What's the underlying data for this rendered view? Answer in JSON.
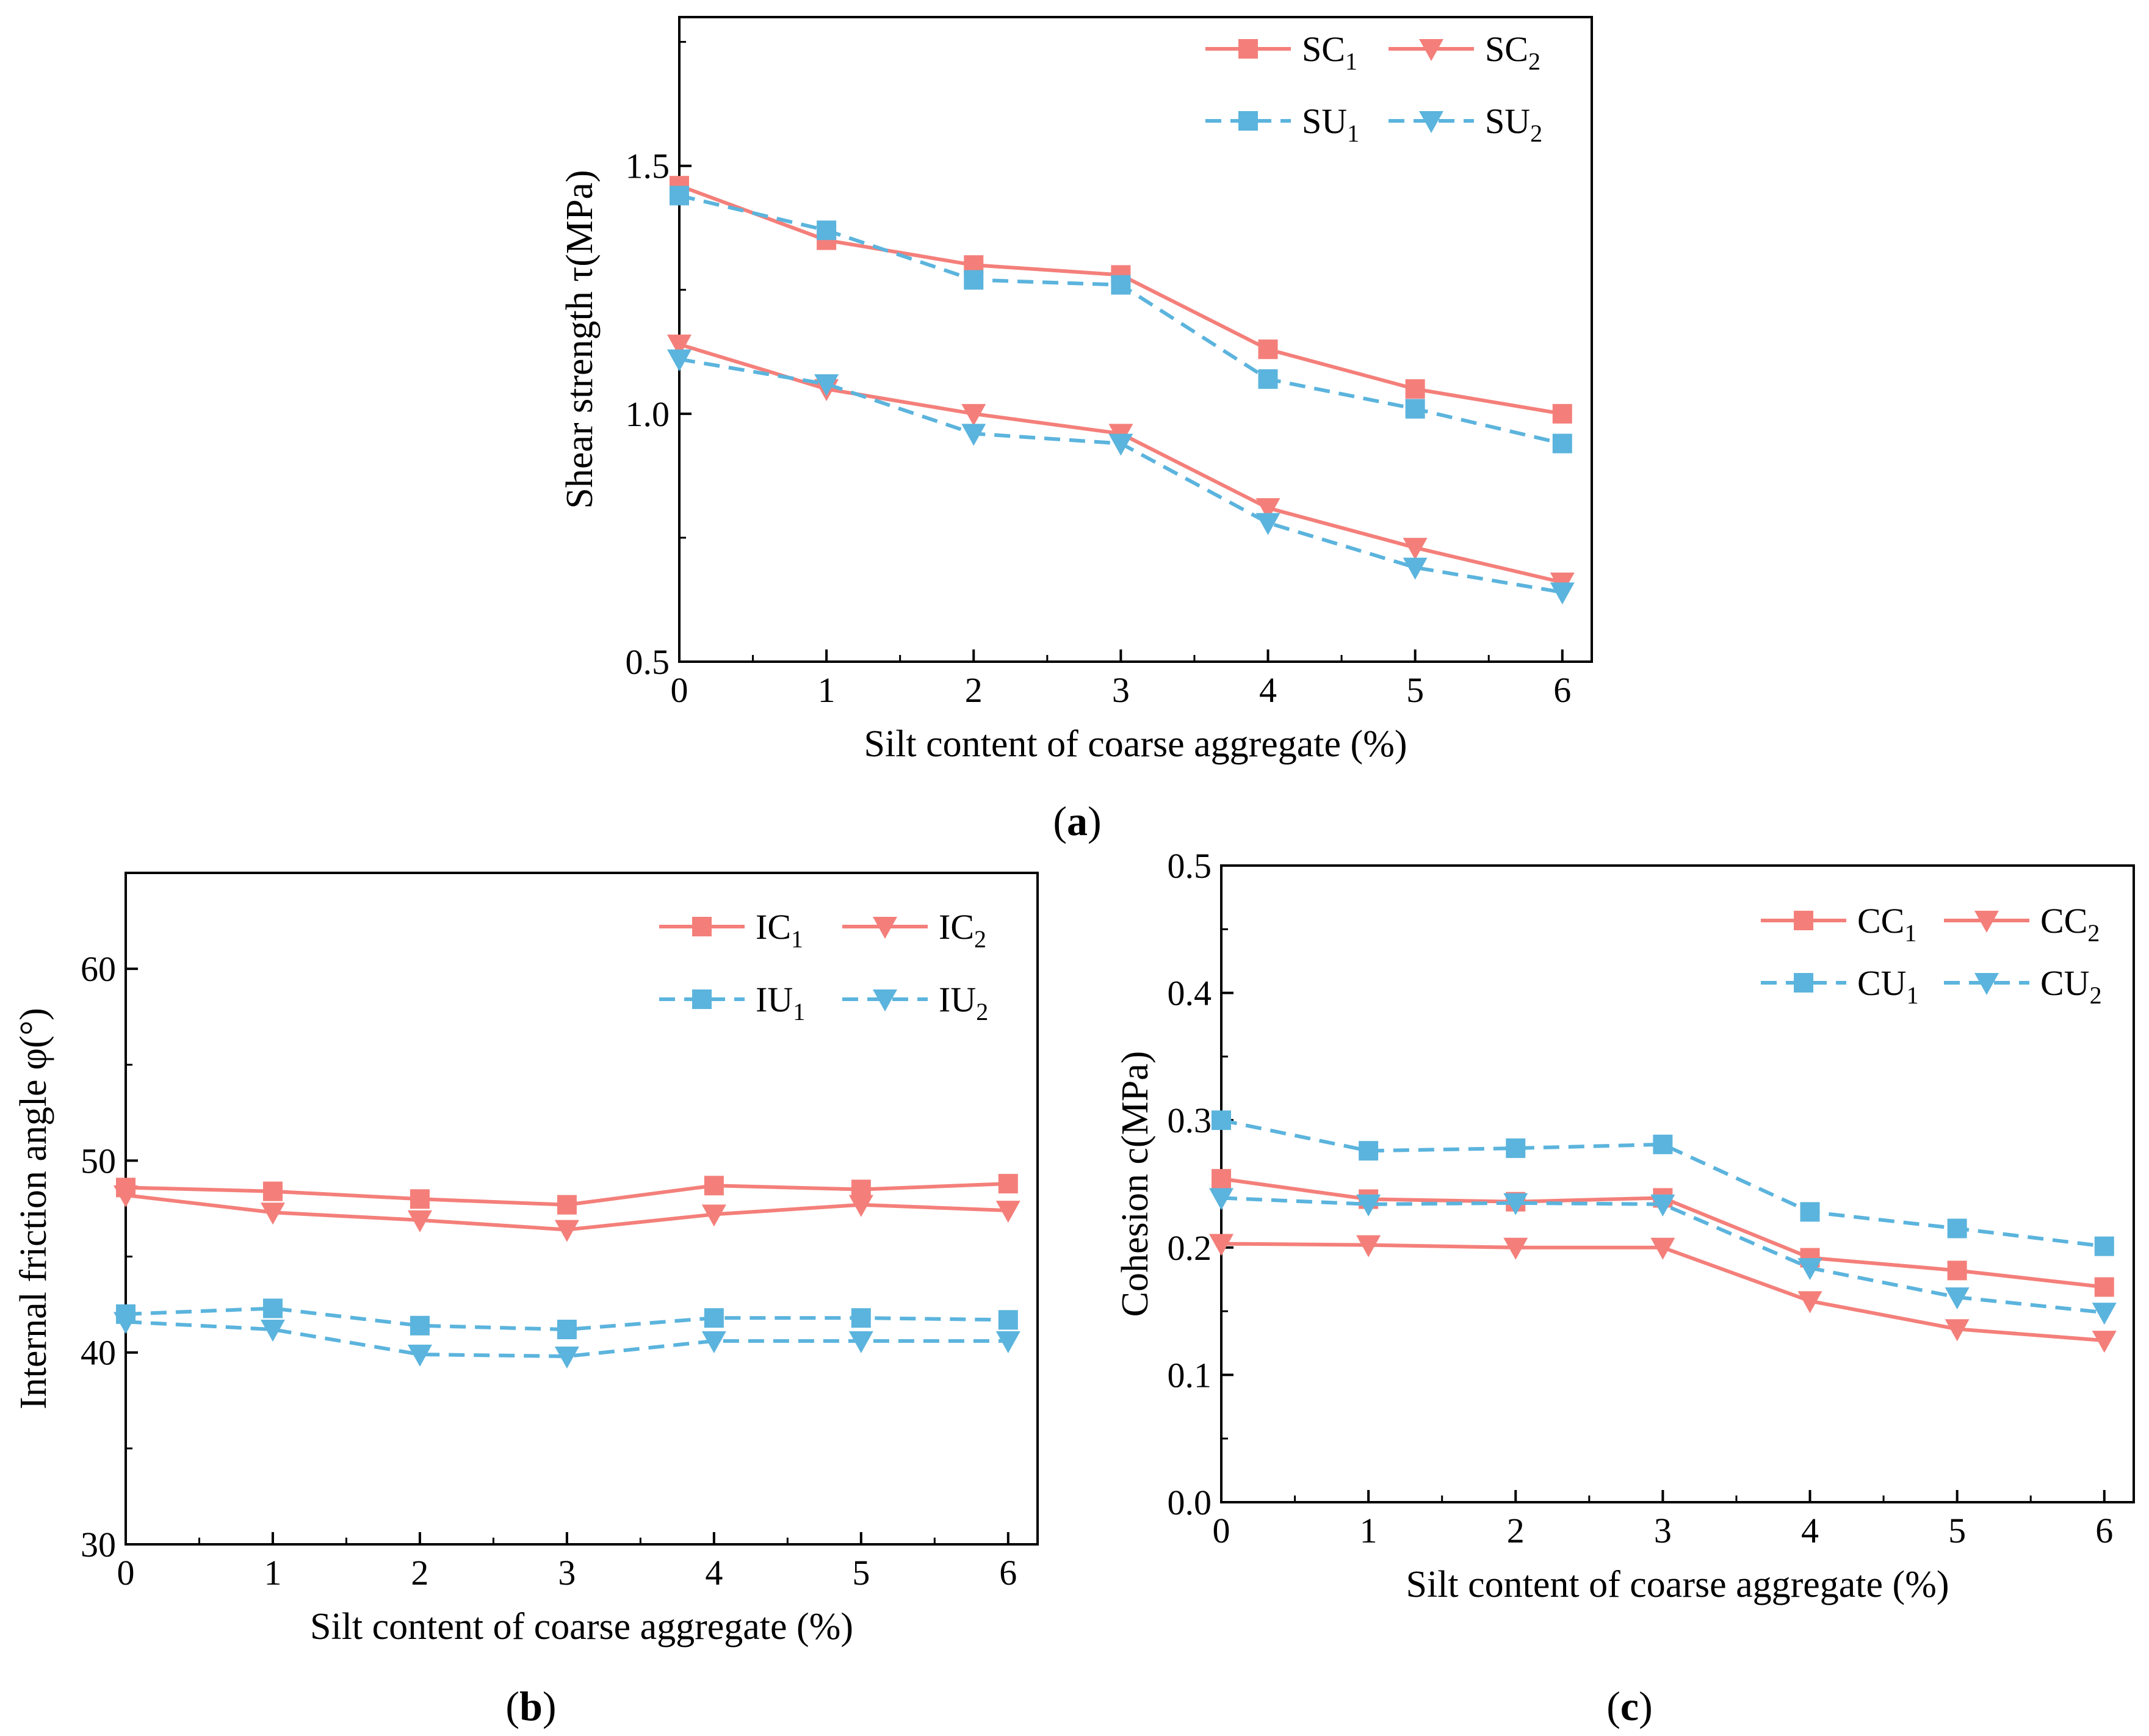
{
  "colors": {
    "c_series": "#f47f7a",
    "u_series": "#5bb4dd",
    "axis": "#000000"
  },
  "chart_data": [
    {
      "type": "line",
      "panel": "a",
      "panel_label": "(a)",
      "xlabel": "Silt content of coarse aggregate  (%)",
      "ylabel": "Shear strength  τ(MPa)",
      "x": [
        0,
        1,
        2,
        3,
        4,
        5,
        6
      ],
      "xlim": [
        0,
        6.2
      ],
      "ylim": [
        0.5,
        1.8
      ],
      "xticks": [
        0,
        1,
        2,
        3,
        4,
        5,
        6
      ],
      "yticks": [
        0.5,
        1.0,
        1.5
      ],
      "yticks_labels": [
        "0.5",
        "1.0",
        "1.5"
      ],
      "legend_position": "top-right",
      "series": [
        {
          "name": "SC1",
          "base": "SC",
          "sub": "1",
          "marker": "square",
          "style": "solid",
          "color": "#f47f7a",
          "values": [
            1.46,
            1.35,
            1.3,
            1.28,
            1.13,
            1.05,
            1.0
          ]
        },
        {
          "name": "SC2",
          "base": "SC",
          "sub": "2",
          "marker": "triangle-down",
          "style": "solid",
          "color": "#f47f7a",
          "values": [
            1.14,
            1.05,
            1.0,
            0.96,
            0.81,
            0.73,
            0.66
          ]
        },
        {
          "name": "SU1",
          "base": "SU",
          "sub": "1",
          "marker": "square",
          "style": "dashed",
          "color": "#5bb4dd",
          "values": [
            1.44,
            1.37,
            1.27,
            1.26,
            1.07,
            1.01,
            0.94
          ]
        },
        {
          "name": "SU2",
          "base": "SU",
          "sub": "2",
          "marker": "triangle-down",
          "style": "dashed",
          "color": "#5bb4dd",
          "values": [
            1.11,
            1.06,
            0.96,
            0.94,
            0.78,
            0.69,
            0.64
          ]
        }
      ]
    },
    {
      "type": "line",
      "panel": "b",
      "panel_label": "(b)",
      "xlabel": "Silt content of coarse aggregate (%)",
      "ylabel": "Internal friction angle φ(°)",
      "x": [
        0,
        1,
        2,
        3,
        4,
        5,
        6
      ],
      "xlim": [
        0,
        6.2
      ],
      "ylim": [
        30,
        65
      ],
      "xticks": [
        0,
        1,
        2,
        3,
        4,
        5,
        6
      ],
      "yticks": [
        30,
        40,
        50,
        60
      ],
      "yticks_labels": [
        "30",
        "40",
        "50",
        "60"
      ],
      "legend_position": "top-right",
      "series": [
        {
          "name": "IC1",
          "base": "IC",
          "sub": "1",
          "marker": "square",
          "style": "solid",
          "color": "#f47f7a",
          "values": [
            48.6,
            48.4,
            48.0,
            47.7,
            48.7,
            48.5,
            48.8
          ]
        },
        {
          "name": "IC2",
          "base": "IC",
          "sub": "2",
          "marker": "triangle-down",
          "style": "solid",
          "color": "#f47f7a",
          "values": [
            48.2,
            47.3,
            46.9,
            46.4,
            47.2,
            47.7,
            47.4
          ]
        },
        {
          "name": "IU1",
          "base": "IU",
          "sub": "1",
          "marker": "square",
          "style": "dashed",
          "color": "#5bb4dd",
          "values": [
            42.0,
            42.3,
            41.4,
            41.2,
            41.8,
            41.8,
            41.7
          ]
        },
        {
          "name": "IU2",
          "base": "IU",
          "sub": "2",
          "marker": "triangle-down",
          "style": "dashed",
          "color": "#5bb4dd",
          "values": [
            41.6,
            41.2,
            39.9,
            39.8,
            40.6,
            40.6,
            40.6
          ]
        }
      ]
    },
    {
      "type": "line",
      "panel": "c",
      "panel_label": "(c)",
      "xlabel": "Silt content of coarse aggregate  (%)",
      "ylabel": "Cohesion  c(MPa)",
      "x": [
        0,
        1,
        2,
        3,
        4,
        5,
        6
      ],
      "xlim": [
        0,
        6.2
      ],
      "ylim": [
        0.0,
        0.5
      ],
      "xticks": [
        0,
        1,
        2,
        3,
        4,
        5,
        6
      ],
      "yticks": [
        0.0,
        0.1,
        0.2,
        0.3,
        0.4,
        0.5
      ],
      "yticks_labels": [
        "0.0",
        "0.1",
        "0.2",
        "0.3",
        "0.4",
        "0.5"
      ],
      "legend_position": "top-right",
      "series": [
        {
          "name": "CC1",
          "base": "CC",
          "sub": "1",
          "marker": "square",
          "style": "solid",
          "color": "#f47f7a",
          "values": [
            0.254,
            0.238,
            0.236,
            0.239,
            0.192,
            0.182,
            0.169
          ]
        },
        {
          "name": "CC2",
          "base": "CC",
          "sub": "2",
          "marker": "triangle-down",
          "style": "solid",
          "color": "#f47f7a",
          "values": [
            0.203,
            0.202,
            0.2,
            0.2,
            0.158,
            0.136,
            0.127
          ]
        },
        {
          "name": "CU1",
          "base": "CU",
          "sub": "1",
          "marker": "square",
          "style": "dashed",
          "color": "#5bb4dd",
          "values": [
            0.3,
            0.276,
            0.278,
            0.281,
            0.228,
            0.215,
            0.201
          ]
        },
        {
          "name": "CU2",
          "base": "CU",
          "sub": "2",
          "marker": "triangle-down",
          "style": "dashed",
          "color": "#5bb4dd",
          "values": [
            0.239,
            0.234,
            0.235,
            0.234,
            0.184,
            0.161,
            0.149
          ]
        }
      ]
    }
  ]
}
